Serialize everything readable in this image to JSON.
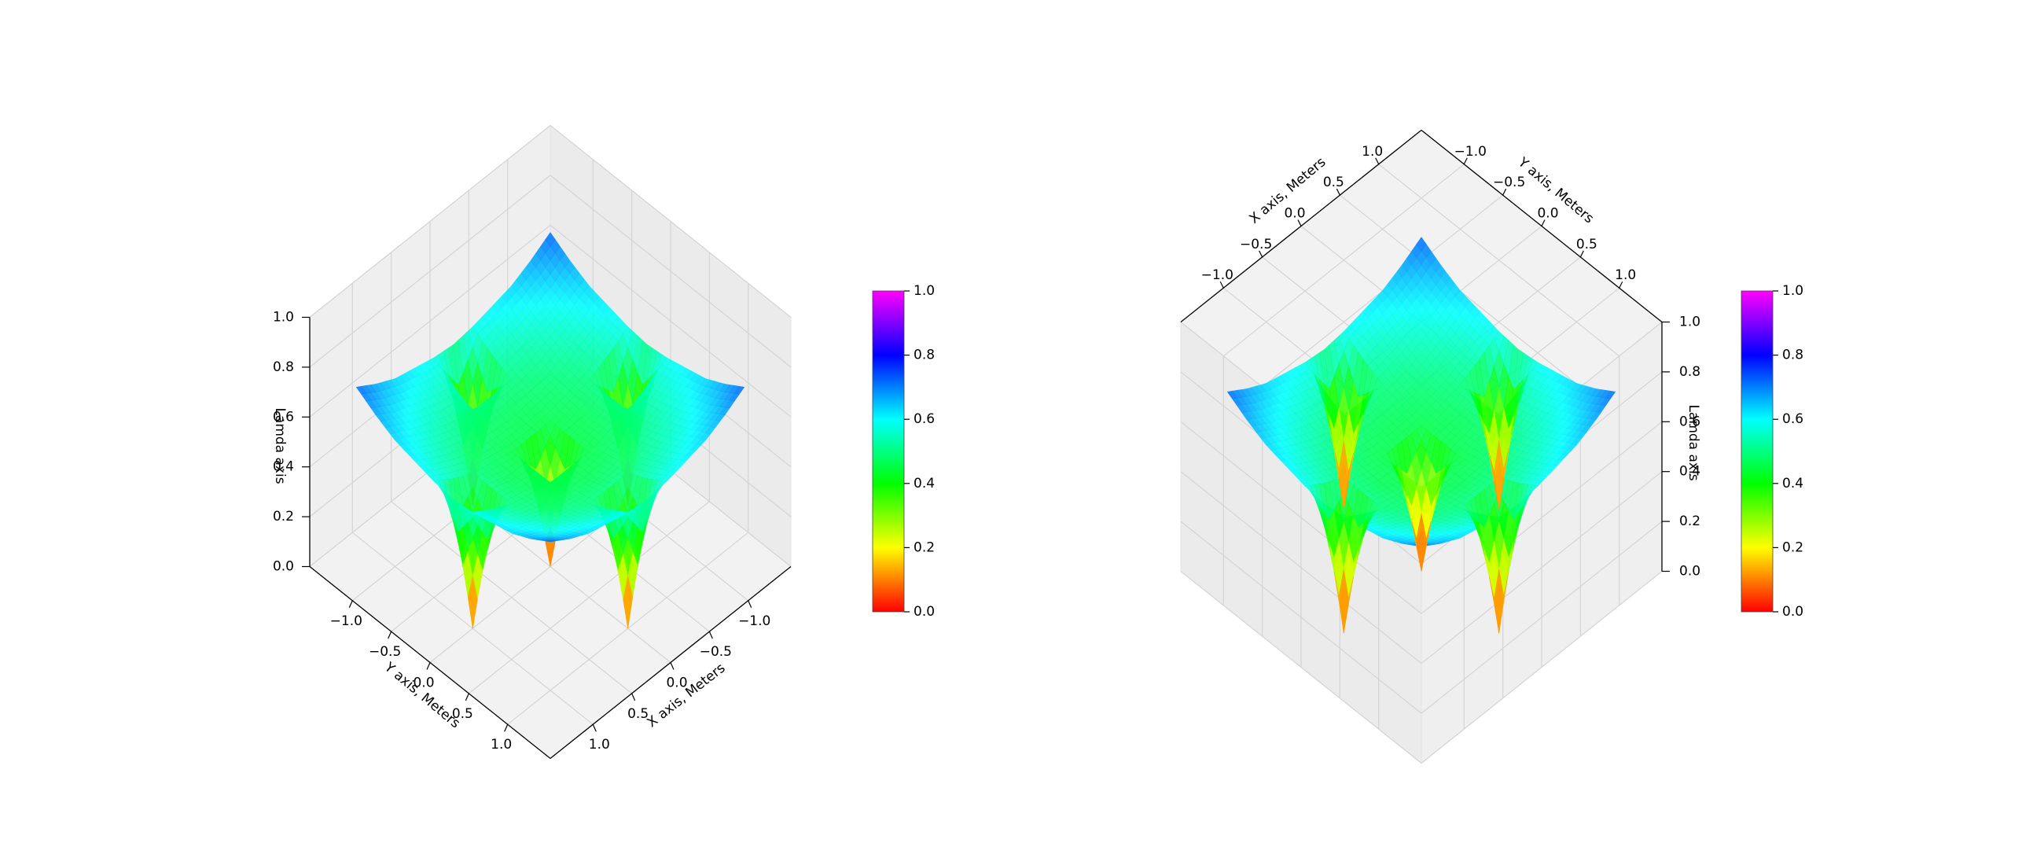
{
  "chart_data": [
    {
      "type": "surface",
      "view": "above",
      "x": [
        -1.25,
        -1,
        -0.75,
        -0.5,
        -0.25,
        0,
        0.25,
        0.5,
        0.75,
        1,
        1.25
      ],
      "y": [
        -1.25,
        -1,
        -0.75,
        -0.5,
        -0.25,
        0,
        0.25,
        0.5,
        0.75,
        1,
        1.25
      ],
      "z": [
        [
          0.72,
          0.67,
          0.63,
          0.61,
          0.59,
          0.58,
          0.59,
          0.61,
          0.63,
          0.67,
          0.72
        ],
        [
          0.67,
          0.62,
          0.59,
          0.56,
          0.54,
          0,
          0.54,
          0.56,
          0.59,
          0.62,
          0.67
        ],
        [
          0.63,
          0.59,
          0.55,
          0.52,
          0.5,
          0.5,
          0.5,
          0.52,
          0.55,
          0.59,
          0.63
        ],
        [
          0.61,
          0.56,
          0.52,
          0.49,
          0.48,
          0.47,
          0.48,
          0.49,
          0.52,
          0.56,
          0.61
        ],
        [
          0.59,
          0.54,
          0.5,
          0.48,
          0.46,
          0.46,
          0.46,
          0.48,
          0.5,
          0.54,
          0.59
        ],
        [
          0.58,
          0,
          0.5,
          0.47,
          0.46,
          0,
          0.46,
          0.47,
          0.5,
          0,
          0.58
        ],
        [
          0.59,
          0.54,
          0.5,
          0.48,
          0.46,
          0.46,
          0.46,
          0.48,
          0.5,
          0.54,
          0.59
        ],
        [
          0.61,
          0.56,
          0.52,
          0.49,
          0.48,
          0.47,
          0.48,
          0.49,
          0.52,
          0.56,
          0.61
        ],
        [
          0.63,
          0.59,
          0.55,
          0.52,
          0.5,
          0.5,
          0.5,
          0.52,
          0.55,
          0.59,
          0.63
        ],
        [
          0.67,
          0.62,
          0.59,
          0.56,
          0.54,
          0,
          0.54,
          0.56,
          0.59,
          0.62,
          0.67
        ],
        [
          0.72,
          0.67,
          0.63,
          0.61,
          0.59,
          0.58,
          0.59,
          0.61,
          0.63,
          0.67,
          0.72
        ]
      ],
      "xlim": [
        -1.55,
        1.55
      ],
      "ylim": [
        -1.55,
        1.55
      ],
      "zlim": [
        0,
        1
      ],
      "xticks": [
        {
          "value": -1,
          "label": "−1.0"
        },
        {
          "value": -0.5,
          "label": "−0.5"
        },
        {
          "value": 0,
          "label": "0.0"
        },
        0.5,
        {
          "value": 1,
          "label": "1.0"
        }
      ],
      "yticks": [
        {
          "value": -1,
          "label": "−1.0"
        },
        {
          "value": -0.5,
          "label": "−0.5"
        },
        {
          "value": 0,
          "label": "0.0"
        },
        0.5,
        {
          "value": 1,
          "label": "1.0"
        }
      ],
      "zticks": [
        {
          "value": 0,
          "label": "0.0"
        },
        0.2,
        0.4,
        0.6,
        0.8,
        {
          "value": 1,
          "label": "1.0"
        }
      ],
      "xlabel": "X axis, Meters",
      "ylabel": "Y axis, Meters",
      "zlabel": "Lamda axis",
      "colormap": [
        "#ff0000",
        "#ffff00",
        "#00ff00",
        "#00ffff",
        "#0000ff",
        "#ff00ff"
      ],
      "clim": [
        0,
        1
      ],
      "cticks": [
        {
          "value": 0,
          "label": "0.0"
        },
        0.2,
        0.4,
        0.6,
        0.8,
        {
          "value": 1,
          "label": "1.0"
        }
      ]
    },
    {
      "type": "surface",
      "view": "below",
      "x": [
        -1.25,
        -1,
        -0.75,
        -0.5,
        -0.25,
        0,
        0.25,
        0.5,
        0.75,
        1,
        1.25
      ],
      "y": [
        -1.25,
        -1,
        -0.75,
        -0.5,
        -0.25,
        0,
        0.25,
        0.5,
        0.75,
        1,
        1.25
      ],
      "z": [
        [
          0.72,
          0.67,
          0.63,
          0.61,
          0.59,
          0.58,
          0.59,
          0.61,
          0.63,
          0.67,
          0.72
        ],
        [
          0.67,
          0.62,
          0.59,
          0.56,
          0.54,
          0,
          0.54,
          0.56,
          0.59,
          0.62,
          0.67
        ],
        [
          0.63,
          0.59,
          0.55,
          0.52,
          0.5,
          0.5,
          0.5,
          0.52,
          0.55,
          0.59,
          0.63
        ],
        [
          0.61,
          0.56,
          0.52,
          0.49,
          0.48,
          0.47,
          0.48,
          0.49,
          0.52,
          0.56,
          0.61
        ],
        [
          0.59,
          0.54,
          0.5,
          0.48,
          0.46,
          0.46,
          0.46,
          0.48,
          0.5,
          0.54,
          0.59
        ],
        [
          0.58,
          0,
          0.5,
          0.47,
          0.46,
          0,
          0.46,
          0.47,
          0.5,
          0,
          0.58
        ],
        [
          0.59,
          0.54,
          0.5,
          0.48,
          0.46,
          0.46,
          0.46,
          0.48,
          0.5,
          0.54,
          0.59
        ],
        [
          0.61,
          0.56,
          0.52,
          0.49,
          0.48,
          0.47,
          0.48,
          0.49,
          0.52,
          0.56,
          0.61
        ],
        [
          0.63,
          0.59,
          0.55,
          0.52,
          0.5,
          0.5,
          0.5,
          0.52,
          0.55,
          0.59,
          0.63
        ],
        [
          0.67,
          0.62,
          0.59,
          0.56,
          0.54,
          0,
          0.54,
          0.56,
          0.59,
          0.62,
          0.67
        ],
        [
          0.72,
          0.67,
          0.63,
          0.61,
          0.59,
          0.58,
          0.59,
          0.61,
          0.63,
          0.67,
          0.72
        ]
      ],
      "xlim": [
        -1.55,
        1.55
      ],
      "ylim": [
        -1.55,
        1.55
      ],
      "zlim": [
        0,
        1
      ],
      "xticks": [
        {
          "value": -1,
          "label": "−1.0"
        },
        {
          "value": -0.5,
          "label": "−0.5"
        },
        {
          "value": 0,
          "label": "0.0"
        },
        0.5,
        {
          "value": 1,
          "label": "1.0"
        }
      ],
      "yticks": [
        {
          "value": -1,
          "label": "−1.0"
        },
        {
          "value": -0.5,
          "label": "−0.5"
        },
        {
          "value": 0,
          "label": "0.0"
        },
        0.5,
        {
          "value": 1,
          "label": "1.0"
        }
      ],
      "zticks": [
        {
          "value": 0,
          "label": "0.0"
        },
        0.2,
        0.4,
        0.6,
        0.8,
        {
          "value": 1,
          "label": "1.0"
        }
      ],
      "xlabel": "X axis, Meters",
      "ylabel": "Y axis, Meters",
      "zlabel": "Lamda axis",
      "colormap": [
        "#ff0000",
        "#ffff00",
        "#00ff00",
        "#00ffff",
        "#0000ff",
        "#ff00ff"
      ],
      "clim": [
        0,
        1
      ],
      "cticks": [
        {
          "value": 0,
          "label": "0.0"
        },
        0.2,
        0.4,
        0.6,
        0.8,
        {
          "value": 1,
          "label": "1.0"
        }
      ]
    }
  ]
}
